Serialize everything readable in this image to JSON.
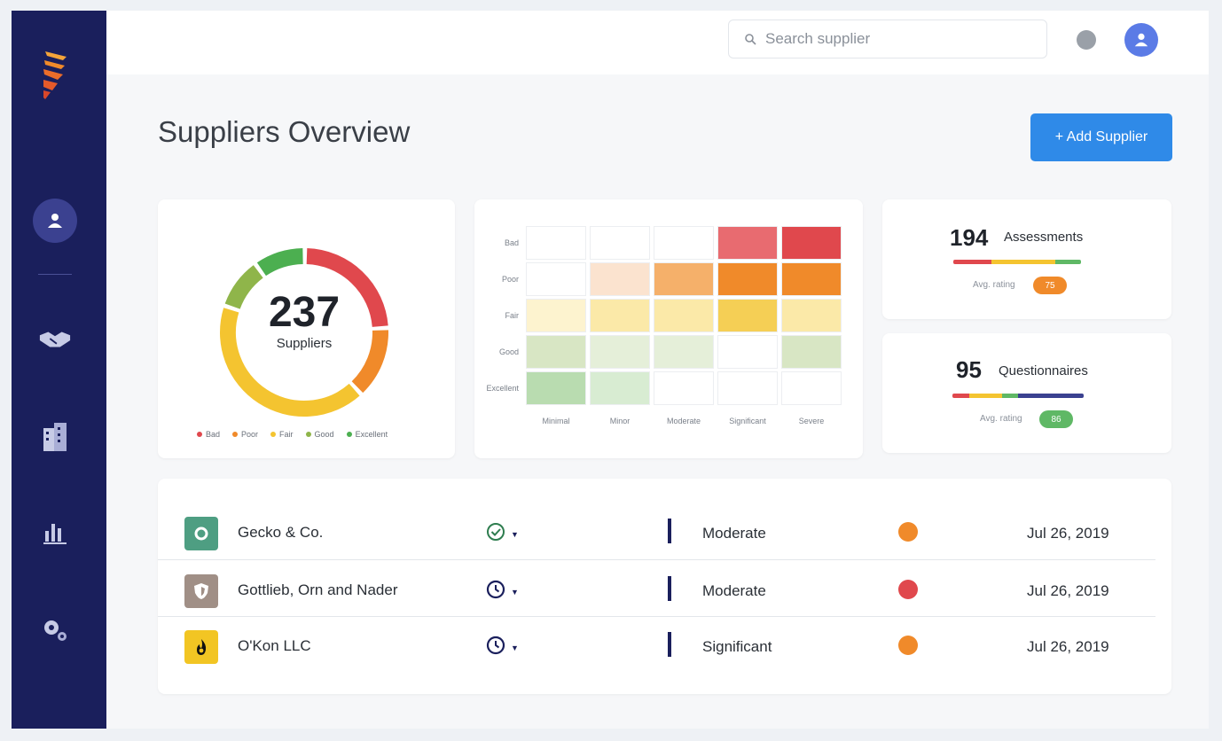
{
  "search": {
    "placeholder": "Search supplier"
  },
  "page": {
    "title": "Suppliers Overview",
    "add_button": "+ Add Supplier"
  },
  "sidebar": {
    "items": [
      {
        "icon": "user-icon",
        "active": true
      },
      {
        "icon": "handshake-icon"
      },
      {
        "icon": "building-icon"
      },
      {
        "icon": "bar-chart-icon"
      },
      {
        "icon": "gear-icon"
      }
    ]
  },
  "donut": {
    "total": "237",
    "label": "Suppliers",
    "legend": [
      {
        "name": "Bad",
        "color": "#e0484d"
      },
      {
        "name": "Poor",
        "color": "#f08a2a"
      },
      {
        "name": "Fair",
        "color": "#f4c430"
      },
      {
        "name": "Good",
        "color": "#8fb54a"
      },
      {
        "name": "Excellent",
        "color": "#4caf50"
      }
    ]
  },
  "chart_data": [
    {
      "type": "pie",
      "categories": [
        "Bad",
        "Poor",
        "Fair",
        "Good",
        "Excellent"
      ],
      "values": [
        24,
        14,
        42,
        10,
        10
      ],
      "colors": [
        "#e0484d",
        "#f08a2a",
        "#f4c430",
        "#8fb54a",
        "#4caf50"
      ],
      "title": "237",
      "subtitle": "Suppliers"
    },
    {
      "type": "heatmap",
      "rows": [
        "Bad",
        "Poor",
        "Fair",
        "Good",
        "Excellent"
      ],
      "columns": [
        "Minimal",
        "Minor",
        "Moderate",
        "Significant",
        "Severe"
      ],
      "colors": [
        [
          "#ffffff",
          "#ffffff",
          "#ffffff",
          "#e86b70",
          "#e0484d"
        ],
        [
          "#ffffff",
          "#fbe3cf",
          "#f5b06a",
          "#f08a2a",
          "#f08a2a"
        ],
        [
          "#fdf3cf",
          "#fbe9a8",
          "#fbe9a8",
          "#f5cf55",
          "#fbe9a8"
        ],
        [
          "#d8e6c4",
          "#e5efd9",
          "#e5efd9",
          "#ffffff",
          "#d8e6c4"
        ],
        [
          "#b9dcb0",
          "#d8ecd2",
          "#ffffff",
          "#ffffff",
          "#ffffff"
        ]
      ]
    }
  ],
  "stats": {
    "assessments": {
      "count": "194",
      "label": "Assessments",
      "avg_label": "Avg. rating",
      "avg_value": "75",
      "avg_color": "#f08a2a"
    },
    "questionnaires": {
      "count": "95",
      "label": "Questionnaires",
      "avg_label": "Avg. rating",
      "avg_value": "86",
      "avg_color": "#5fb865"
    }
  },
  "suppliers": [
    {
      "name": "Gecko & Co.",
      "logo_icon": "ring-icon",
      "logo_color": "#4e9e82",
      "status_icon": "check-circle-icon",
      "risk": "Moderate",
      "risk_color": "#f08a2a",
      "date": "Jul 26, 2019"
    },
    {
      "name": "Gottlieb, Orn and Nader",
      "logo_icon": "shield-icon",
      "logo_color": "#a08f86",
      "status_icon": "clock-icon",
      "risk": "Moderate",
      "risk_color": "#e0484d",
      "date": "Jul 26, 2019"
    },
    {
      "name": "O'Kon LLC",
      "logo_icon": "flame-icon",
      "logo_color": "#f2c523",
      "status_icon": "clock-icon",
      "risk": "Significant",
      "risk_color": "#f08a2a",
      "date": "Jul 26, 2019"
    }
  ]
}
